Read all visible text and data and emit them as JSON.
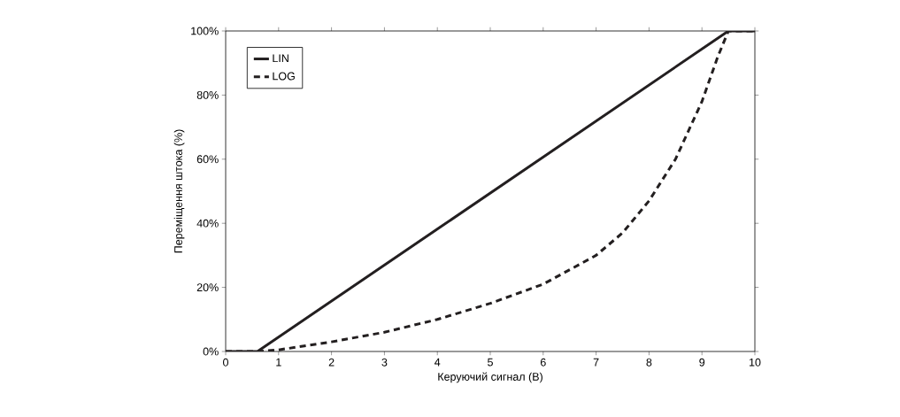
{
  "chart_data": {
    "type": "line",
    "xlabel": "Керуючий сигнал (В)",
    "ylabel": "Переміщення штока (%)",
    "xlim": [
      0,
      10
    ],
    "ylim": [
      0,
      100
    ],
    "xticks": [
      0,
      1,
      2,
      3,
      4,
      5,
      6,
      7,
      8,
      9,
      10
    ],
    "yticks": [
      {
        "value": 0,
        "label": "0%"
      },
      {
        "value": 20,
        "label": "20%"
      },
      {
        "value": 40,
        "label": "40%"
      },
      {
        "value": 60,
        "label": "60%"
      },
      {
        "value": 80,
        "label": "80%"
      },
      {
        "value": 100,
        "label": "100%"
      }
    ],
    "grid": false,
    "legend": "top left",
    "marker": "none",
    "series": [
      {
        "name": "LIN",
        "color": "#231f20",
        "line_style": "solid",
        "x": [
          0,
          0.6,
          9.5,
          10
        ],
        "values": [
          0,
          0,
          100,
          100
        ]
      },
      {
        "name": "LOG",
        "color": "#231f20",
        "line_style": "dashed",
        "x": [
          0,
          0.6,
          1,
          2,
          3,
          4,
          5,
          6,
          7,
          7.5,
          8,
          8.5,
          9,
          9.3,
          9.5,
          10
        ],
        "values": [
          0,
          0,
          0.5,
          3,
          6,
          10,
          15,
          21,
          30,
          37,
          47,
          60,
          78,
          92,
          100,
          100
        ]
      }
    ]
  }
}
